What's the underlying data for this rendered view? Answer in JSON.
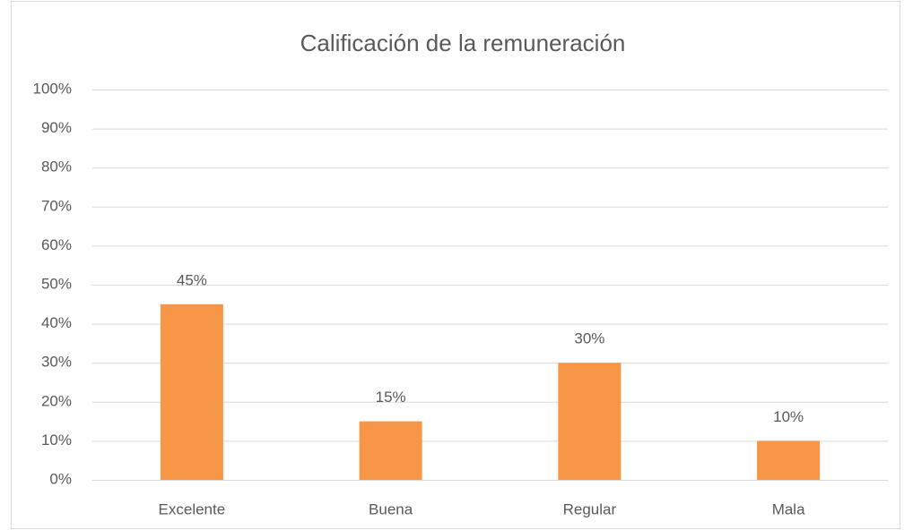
{
  "chart_data": {
    "type": "bar",
    "title": "Calificación de la remuneración",
    "categories": [
      "Excelente",
      "Buena",
      "Regular",
      "Mala"
    ],
    "values": [
      45,
      15,
      30,
      10
    ],
    "value_labels": [
      "45%",
      "15%",
      "30%",
      "10%"
    ],
    "color": "#f79646",
    "ylim": [
      0,
      100
    ],
    "yticks": [
      {
        "value": 0,
        "label": "0%"
      },
      {
        "value": 10,
        "label": "10%"
      },
      {
        "value": 20,
        "label": "20%"
      },
      {
        "value": 30,
        "label": "30%"
      },
      {
        "value": 40,
        "label": "40%"
      },
      {
        "value": 50,
        "label": "50%"
      },
      {
        "value": 60,
        "label": "60%"
      },
      {
        "value": 70,
        "label": "70%"
      },
      {
        "value": 80,
        "label": "80%"
      },
      {
        "value": 90,
        "label": "90%"
      },
      {
        "value": 100,
        "label": "100%"
      }
    ],
    "grid": true
  }
}
